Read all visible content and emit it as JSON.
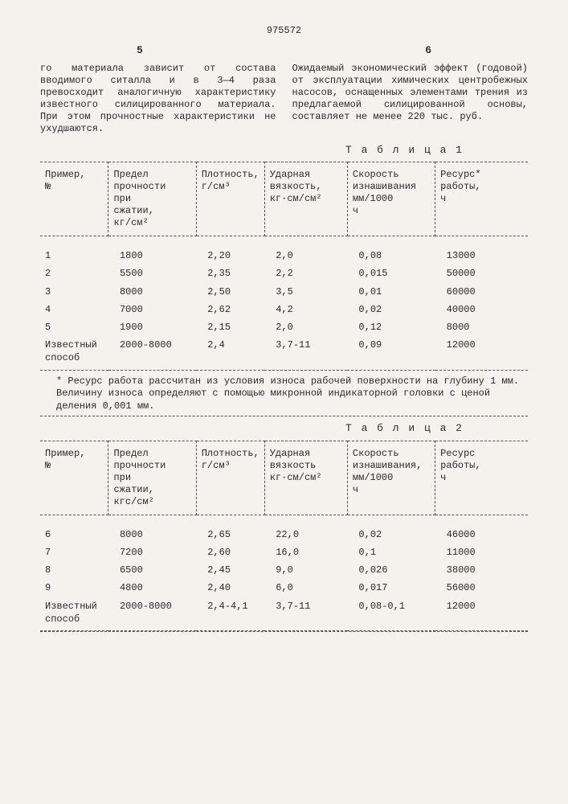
{
  "doc_number": "975572",
  "page_left": "5",
  "page_right": "6",
  "para_left": "го материала зависит от состава вводимого ситалла и в 3—4 раза превосходит аналогичную характеристику известного силицированного материала. При этом прочностные характеристики не ухудшаются.",
  "para_right": "Ожидаемый экономический эффект (годовой) от эксплуатации химических центробежных насосов, оснащенных элементами трения из предлагаемой силицированной основы, составляет не менее 220 тыс. руб.",
  "table1": {
    "caption": "Т а б л и ц а 1",
    "headers": [
      "Пример, №",
      "Предел прочности при сжатии, кг/см²",
      "Плотность, г/см³",
      "Ударная вязкость, кг·см/см²",
      "Скорость изнашивания мм/1000 ч",
      "Ресурс* работы, ч"
    ],
    "rows": [
      [
        "1",
        "1800",
        "2,20",
        "2,0",
        "0,08",
        "13000"
      ],
      [
        "2",
        "5500",
        "2,35",
        "2,2",
        "0,015",
        "50000"
      ],
      [
        "3",
        "8000",
        "2,50",
        "3,5",
        "0,01",
        "60000"
      ],
      [
        "4",
        "7000",
        "2,62",
        "4,2",
        "0,02",
        "40000"
      ],
      [
        "5",
        "1900",
        "2,15",
        "2,0",
        "0,12",
        "8000"
      ],
      [
        "Известный способ",
        "2000-8000",
        "2,4",
        "3,7-11",
        "0,09",
        "12000"
      ]
    ],
    "footnote": "* Ресурс работа рассчитан из условия износа рабочей поверхности на глубину 1 мм.\nВеличину износа определяют с помощью микронной индикаторной головки с ценой деления 0,001 мм."
  },
  "table2": {
    "caption": "Т а б л и ц а 2",
    "headers": [
      "Пример, №",
      "Предел прочности при сжатии, кгс/см²",
      "Плотность, г/см³",
      "Ударная вязкость кг·см/см²",
      "Скорость изнашивания, мм/1000 ч",
      "Ресурс работы, ч"
    ],
    "rows": [
      [
        "6",
        "8000",
        "2,65",
        "22,0",
        "0,02",
        "46000"
      ],
      [
        "7",
        "7200",
        "2,60",
        "16,0",
        "0,1",
        "11000"
      ],
      [
        "8",
        "6500",
        "2,45",
        "9,0",
        "0,026",
        "38000"
      ],
      [
        "9",
        "4800",
        "2,40",
        "6,0",
        "0,017",
        "56000"
      ],
      [
        "Известный способ",
        "2000-8000",
        "2,4-4,1",
        "3,7-11",
        "0,08-0,1",
        "12000"
      ]
    ]
  },
  "colwidths": [
    "14%",
    "18%",
    "14%",
    "17%",
    "18%",
    "19%"
  ]
}
